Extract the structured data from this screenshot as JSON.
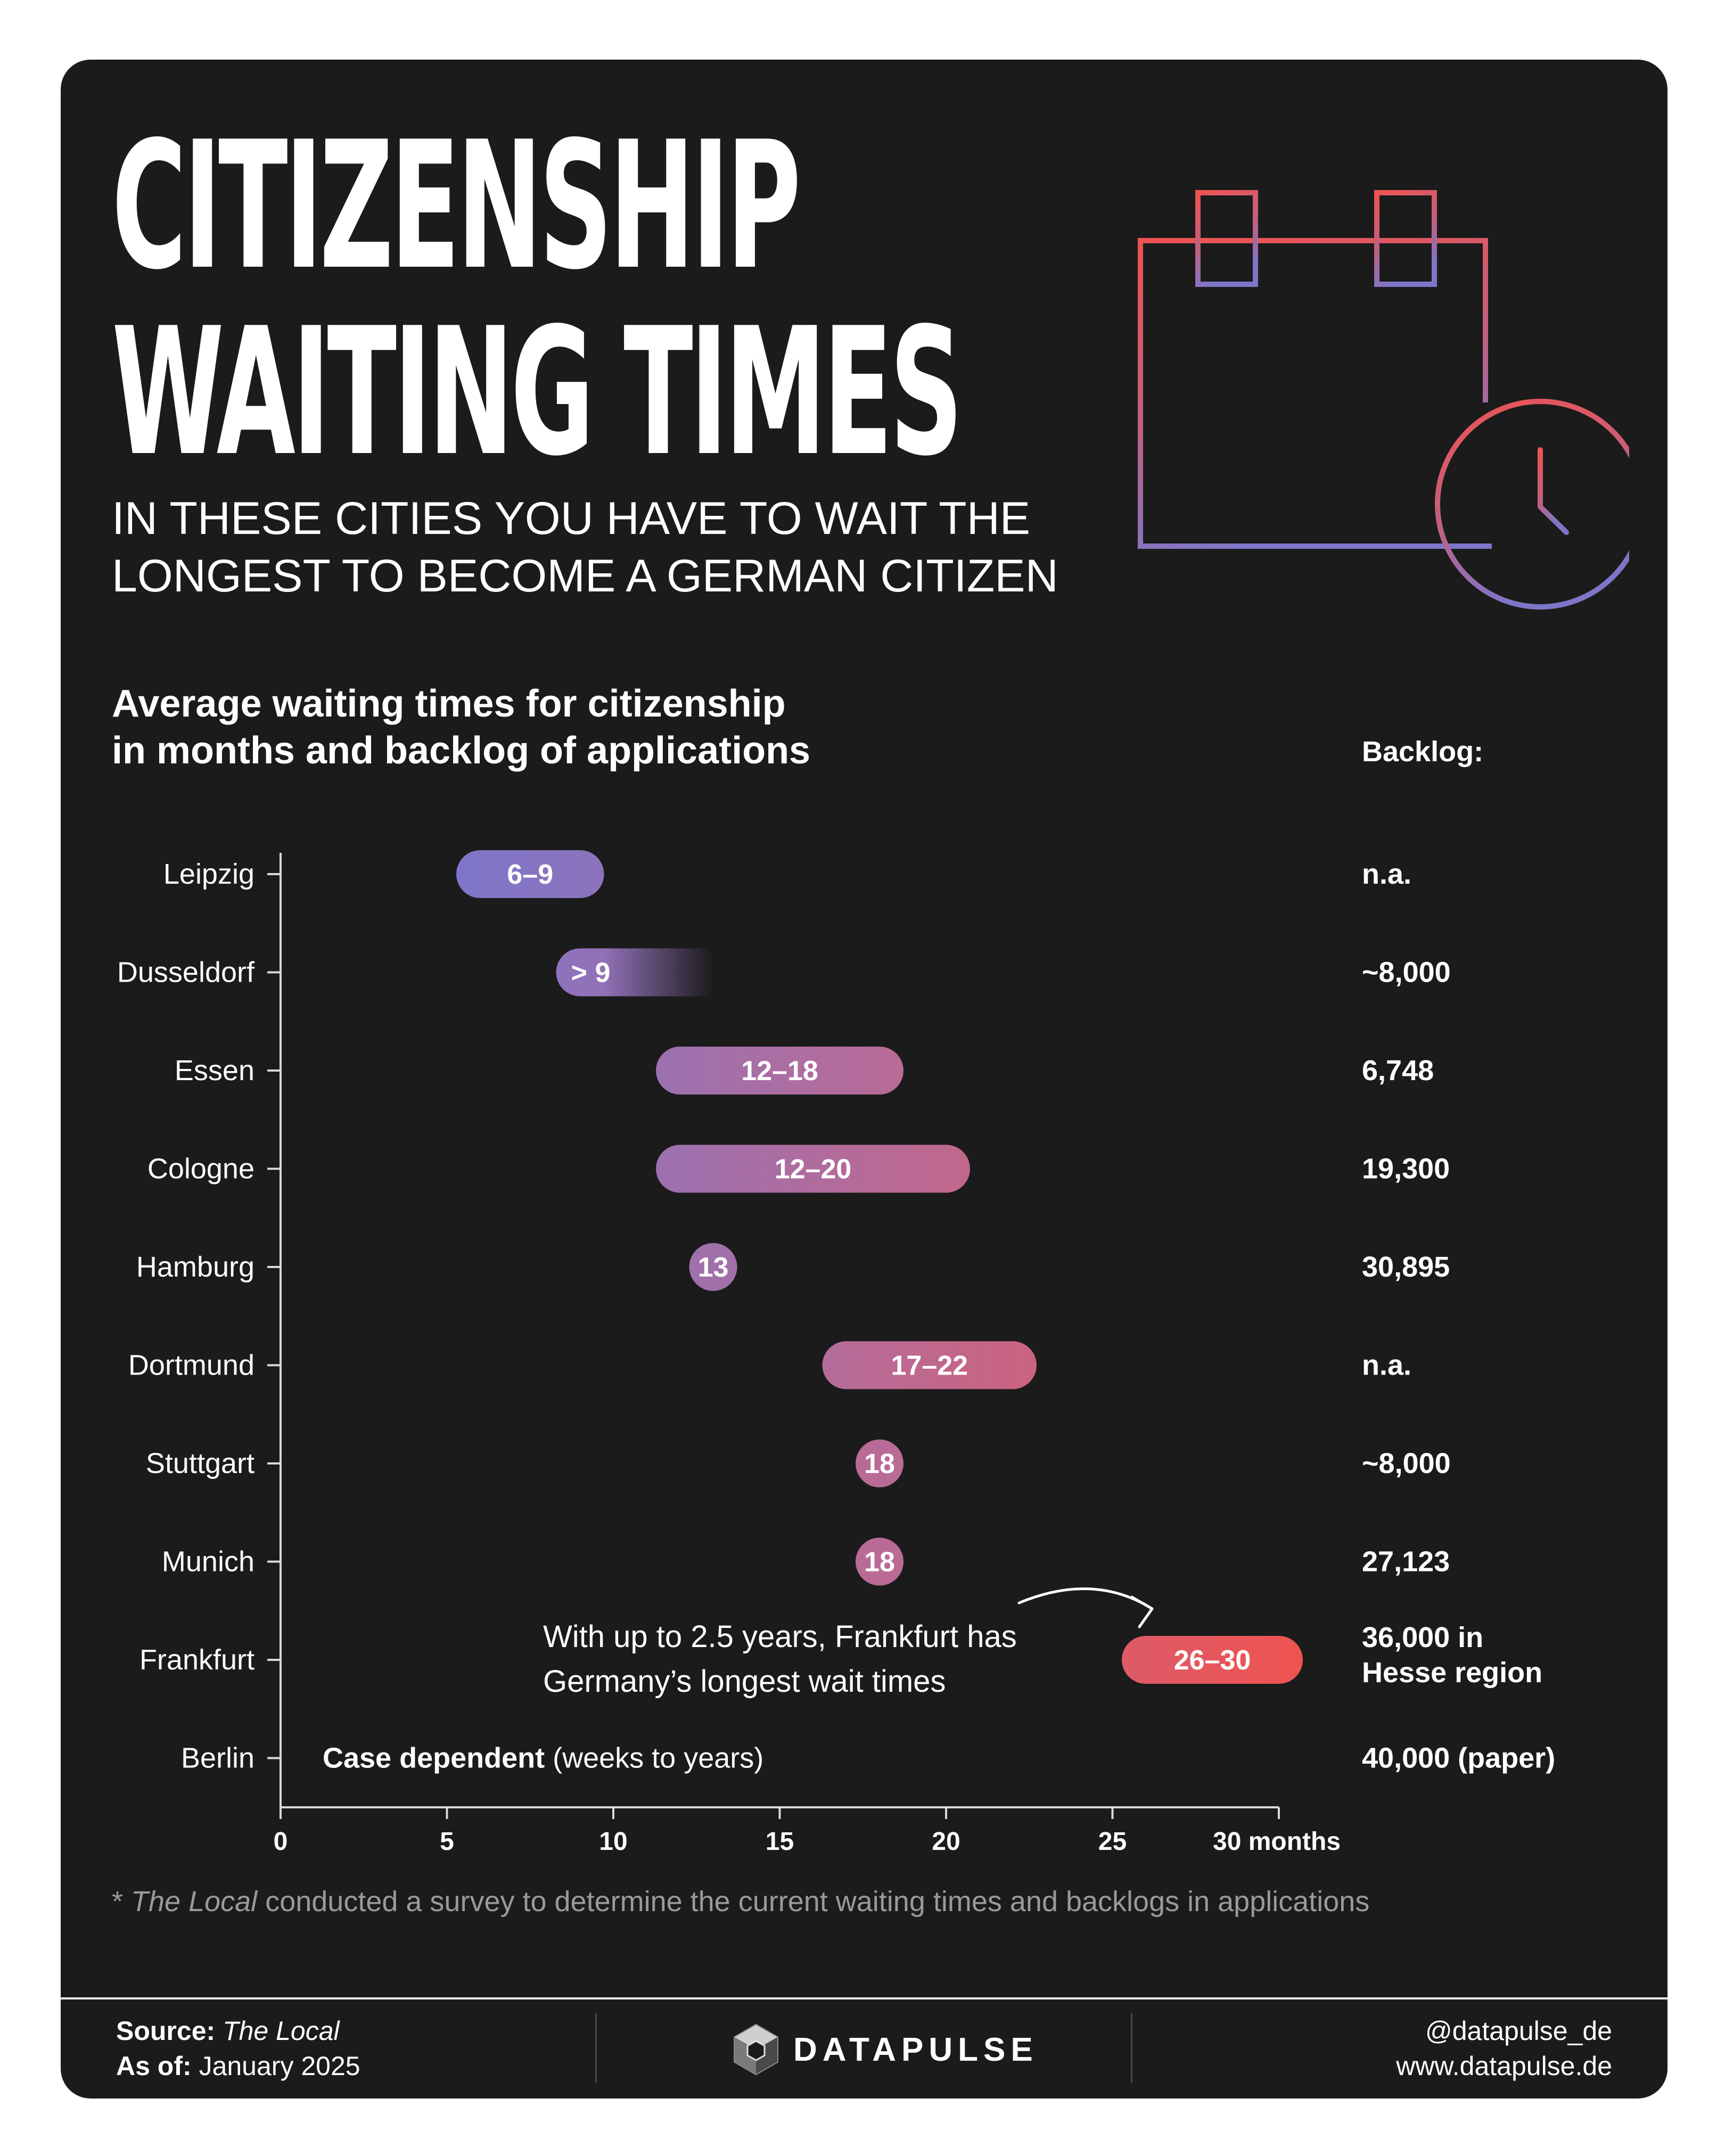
{
  "header": {
    "title_lines": [
      "CITIZENSHIP",
      "WAITING TIMES"
    ],
    "subtitle_lines": [
      "IN THESE CITIES YOU HAVE TO WAIT THE",
      "LONGEST TO BECOME A GERMAN CITIZEN"
    ],
    "icon": "calendar-clock-icon"
  },
  "colors": {
    "background": "#1b1b1b",
    "low": "#7e76c9",
    "mid": "#b96b96",
    "high": "#ef5351",
    "text": "#ffffff",
    "axis": "#d9d9d9"
  },
  "chart_data": {
    "type": "range-bar",
    "title_lines": [
      "Average waiting times for citizenship",
      "in months and backlog of applications"
    ],
    "backlog_header": "Backlog:",
    "x_ticks": [
      0,
      5,
      10,
      15,
      20,
      25,
      30
    ],
    "x_tick_labels": [
      "0",
      "5",
      "10",
      "15",
      "20",
      "25",
      "30 months"
    ],
    "xlim": [
      0,
      30
    ],
    "rows": [
      {
        "city": "Leipzig",
        "start": 6,
        "end": 9,
        "label": "6–9",
        "backlog": [
          "n.a."
        ]
      },
      {
        "city": "Dusseldorf",
        "start": 9,
        "end": 12.3,
        "label": "> 9",
        "open_ended": true,
        "backlog": [
          "~8,000"
        ]
      },
      {
        "city": "Essen",
        "start": 12,
        "end": 18,
        "label": "12–18",
        "backlog": [
          "6,748"
        ]
      },
      {
        "city": "Cologne",
        "start": 12,
        "end": 20,
        "label": "12–20",
        "backlog": [
          "19,300"
        ]
      },
      {
        "city": "Hamburg",
        "start": 13,
        "end": 13,
        "label": "13",
        "backlog": [
          "30,895"
        ]
      },
      {
        "city": "Dortmund",
        "start": 17,
        "end": 22,
        "label": "17–22",
        "backlog": [
          "n.a."
        ]
      },
      {
        "city": "Stuttgart",
        "start": 18,
        "end": 18,
        "label": "18",
        "backlog": [
          "~8,000"
        ]
      },
      {
        "city": "Munich",
        "start": 18,
        "end": 18,
        "label": "18",
        "backlog": [
          "27,123"
        ]
      },
      {
        "city": "Frankfurt",
        "start": 26,
        "end": 30,
        "label": "26–30",
        "backlog": [
          "36,000 in",
          "Hesse region"
        ]
      },
      {
        "city": "Berlin",
        "start": null,
        "end": null,
        "label": null,
        "note_bold": "Case dependent",
        "note_rest": " (weeks to years)",
        "backlog": [
          "40,000 (paper)"
        ]
      }
    ],
    "annotation_lines": [
      "With up to 2.5 years, Frankfurt has",
      "Germany’s longest wait times"
    ]
  },
  "footnote": {
    "prefix": "* ",
    "source_italic": "The Local",
    "rest": " conducted a survey to determine the current waiting times and backlogs in applications"
  },
  "footer": {
    "source_label": "Source:",
    "source_value": "The Local",
    "asof_label": "As of:",
    "asof_value": "January 2025",
    "brand": "DATAPULSE",
    "brand_icon": "datapulse-cube-logo-icon",
    "handle": "@datapulse_de",
    "website": "www.datapulse.de"
  }
}
